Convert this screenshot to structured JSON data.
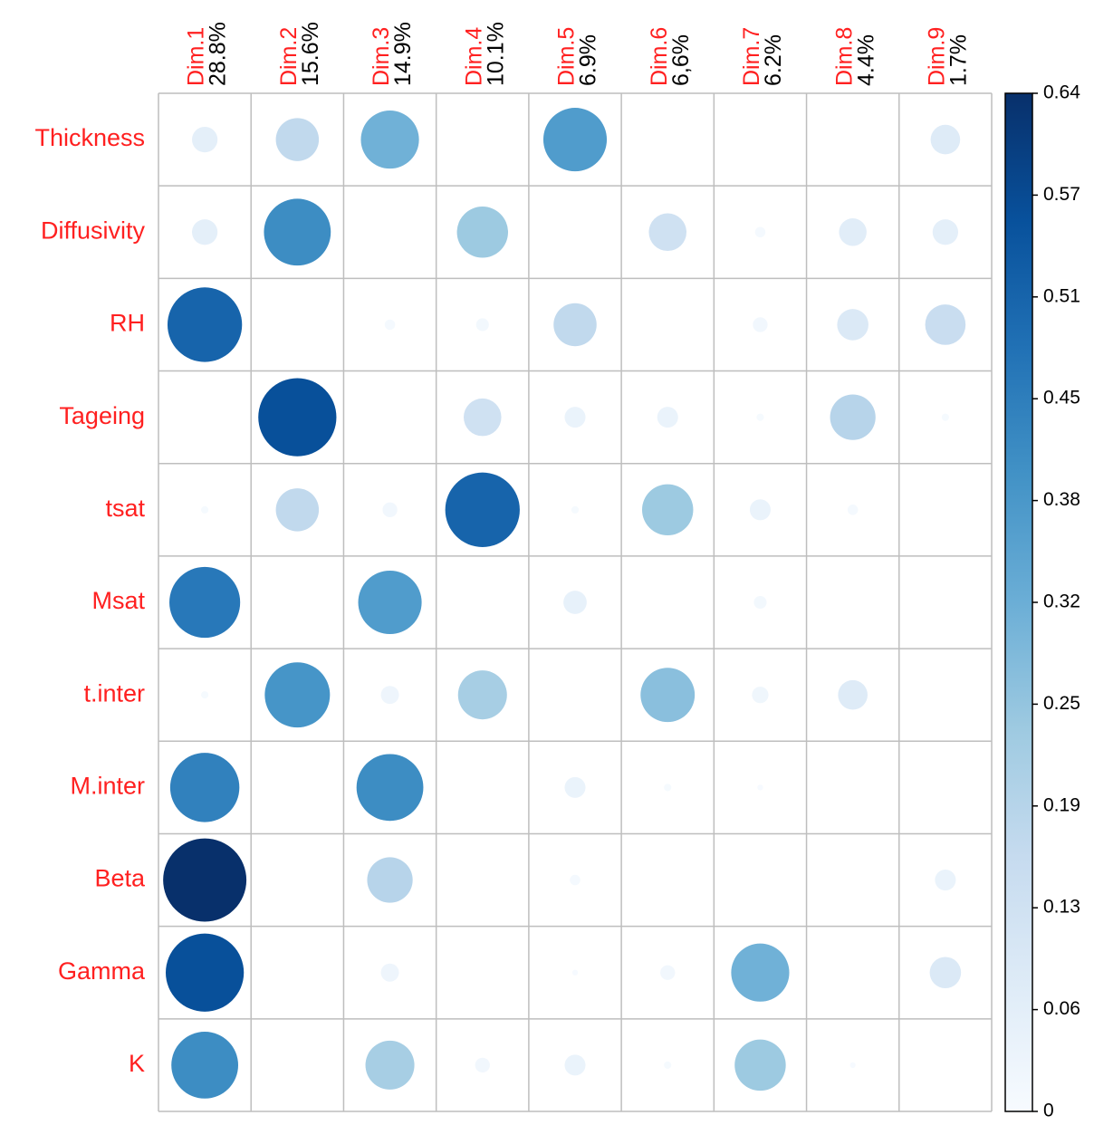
{
  "chart_data": {
    "type": "corrplot",
    "rows": [
      "Thickness",
      "Diffusivity",
      "RH",
      "Tageing",
      "tsat",
      "Msat",
      "t.inter",
      "M.inter",
      "Beta",
      "Gamma",
      "K"
    ],
    "categories": [
      "Dim.1",
      "Dim.2",
      "Dim.3",
      "Dim.4",
      "Dim.5",
      "Dim.6",
      "Dim.7",
      "Dim.8",
      "Dim.9"
    ],
    "category_percents": [
      "28.8%",
      "15.6%",
      "14.9%",
      "10.1%",
      "6.9%",
      "6,6%",
      "6.2%",
      "4.4%",
      "1.7%"
    ],
    "values": [
      [
        0.06,
        0.17,
        0.31,
        0,
        0.37,
        0,
        0,
        0,
        0.08
      ],
      [
        0.06,
        0.41,
        0,
        0.24,
        0,
        0.13,
        0.01,
        0.07,
        0.06
      ],
      [
        0.51,
        0,
        0.01,
        0.015,
        0.17,
        0,
        0.02,
        0.09,
        0.15
      ],
      [
        0,
        0.56,
        0,
        0.13,
        0.04,
        0.04,
        0.005,
        0.19,
        0.005
      ],
      [
        0.005,
        0.17,
        0.02,
        0.51,
        0.005,
        0.24,
        0.04,
        0.01,
        0
      ],
      [
        0.46,
        0,
        0.37,
        0,
        0.05,
        0,
        0.015,
        0,
        0
      ],
      [
        0.005,
        0.39,
        0.03,
        0.22,
        0,
        0.27,
        0.025,
        0.08,
        0
      ],
      [
        0.44,
        0,
        0.41,
        0,
        0.04,
        0.005,
        0.003,
        0,
        0
      ],
      [
        0.637,
        0,
        0.19,
        0,
        0.01,
        0,
        0,
        0,
        0.04
      ],
      [
        0.56,
        0,
        0.03,
        0,
        0.003,
        0.02,
        0.31,
        0,
        0.09
      ],
      [
        0.41,
        0,
        0.22,
        0.02,
        0.04,
        0.005,
        0.24,
        0.003,
        0
      ]
    ],
    "colormap": [
      "#F7FBFF",
      "#DEEBF7",
      "#C6DBEF",
      "#9ECAE1",
      "#6BAED6",
      "#4292C6",
      "#2171B5",
      "#08519C",
      "#08306B"
    ],
    "ylim": [
      0,
      0.637
    ],
    "yticks": [
      0,
      {
        "value": 0.0637,
        "label": "0.06"
      },
      {
        "value": 0.1274,
        "label": "0.13"
      },
      {
        "value": 0.1911,
        "label": "0.19"
      },
      {
        "value": 0.2548,
        "label": "0.25"
      },
      {
        "value": 0.3185,
        "label": "0.32"
      },
      {
        "value": 0.3822,
        "label": "0.38"
      },
      {
        "value": 0.4459,
        "label": "0.45"
      },
      {
        "value": 0.5096,
        "label": "0.51"
      },
      {
        "value": 0.5733,
        "label": "0.57"
      },
      {
        "value": 0.637,
        "label": "0.64"
      }
    ],
    "grid": true
  }
}
